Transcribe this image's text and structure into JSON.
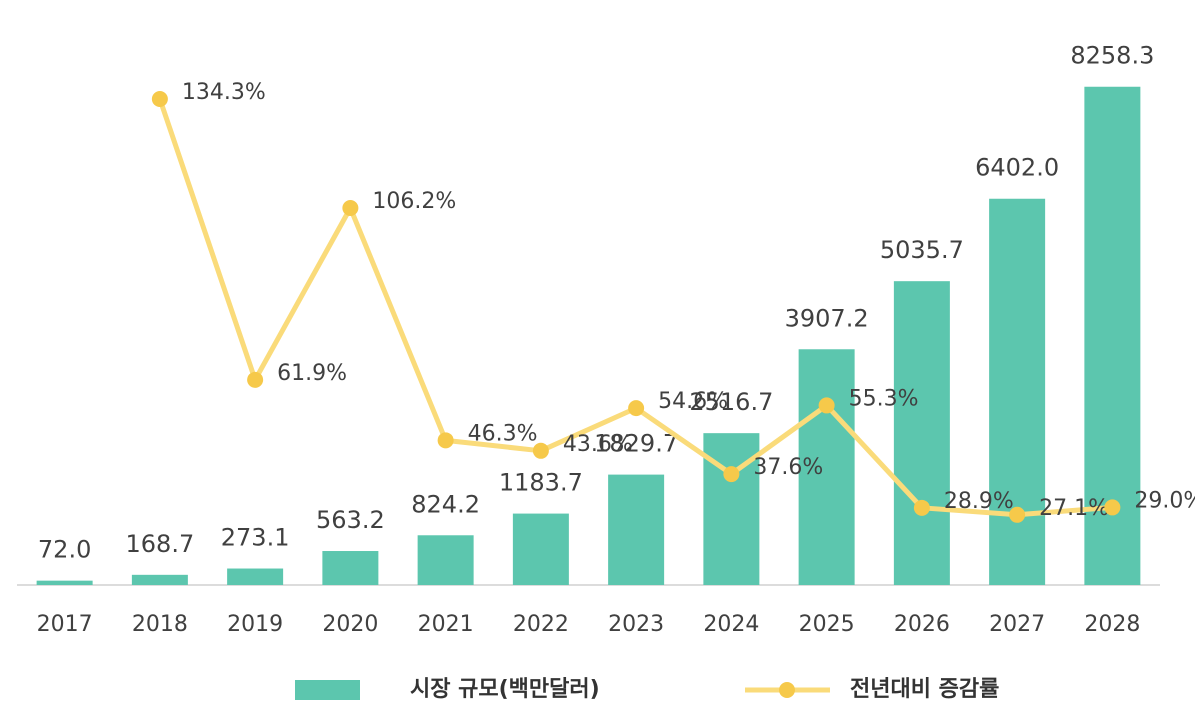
{
  "chart_data": {
    "type": "bar-line",
    "categories": [
      "2017",
      "2018",
      "2019",
      "2020",
      "2021",
      "2022",
      "2023",
      "2024",
      "2025",
      "2026",
      "2027",
      "2028"
    ],
    "ylim": [
      0,
      9000
    ],
    "y2lim": [
      9,
      149
    ],
    "series": [
      {
        "name": "시장 규모(백만달러)",
        "type": "bar",
        "color": "#5cc6ae",
        "values": [
          72.0,
          168.7,
          273.1,
          563.2,
          824.2,
          1183.7,
          1829.7,
          2516.7,
          3907.2,
          5035.7,
          6402.0,
          8258.3
        ],
        "value_labels": [
          "72.0",
          "168.7",
          "273.1",
          "563.2",
          "824.2",
          "1183.7",
          "1829.7",
          "2516.7",
          "3907.2",
          "5035.7",
          "6402.0",
          "8258.3"
        ]
      },
      {
        "name": "전년대비 증감률",
        "type": "line",
        "axis": "y2",
        "color": "#fadb7a",
        "marker_color": "#f6c94a",
        "values": [
          null,
          134.3,
          61.9,
          106.2,
          46.3,
          43.6,
          54.6,
          37.6,
          55.3,
          28.9,
          27.1,
          29.0
        ],
        "value_labels": [
          null,
          "134.3%",
          "61.9%",
          "106.2%",
          "46.3%",
          "43.6%",
          "54.6%",
          "37.6%",
          "55.3%",
          "28.9%",
          "27.1%",
          "29.0%"
        ]
      }
    ]
  }
}
